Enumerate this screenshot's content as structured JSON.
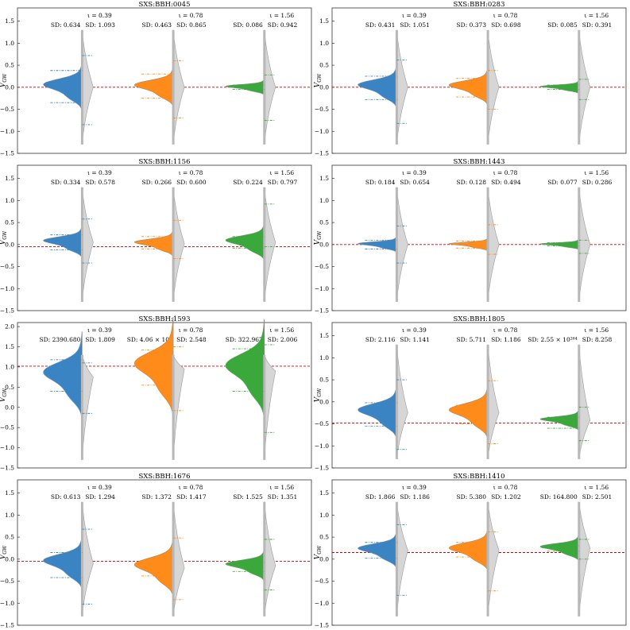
{
  "chart_data": [
    {
      "type": "violin",
      "title": "SXS:BBH:0045",
      "ylabel": "V_GW",
      "ylim": [
        -1.5,
        1.8
      ],
      "yticks": [
        -1.5,
        -1.0,
        -0.5,
        0.0,
        0.5,
        1.0,
        1.5
      ],
      "ytick_labels": [
        "−1.5",
        "−1.0",
        "−0.5",
        "0.0",
        "0.5",
        "1.0",
        "1.5"
      ],
      "reference_line": 0.0,
      "groups": [
        {
          "iota": "ι = 0.39",
          "sd_left": "SD: 0.634",
          "sd_right": "SD: 1.093",
          "color": "#3b84c4",
          "center": 0.0,
          "spread": 0.18,
          "qlo": -0.35,
          "qhi": 0.38,
          "qmin": -0.85,
          "qmax": 0.72
        },
        {
          "iota": "ι = 0.78",
          "sd_left": "SD: 0.463",
          "sd_right": "SD: 0.865",
          "color": "#ff8c1a",
          "center": 0.0,
          "spread": 0.15,
          "qlo": -0.25,
          "qhi": 0.3,
          "qmin": -0.7,
          "qmax": 0.6
        },
        {
          "iota": "ι = 1.56",
          "sd_left": "SD: 0.086",
          "sd_right": "SD: 0.942",
          "color": "#3aa83a",
          "center": 0.0,
          "spread": 0.06,
          "qlo": -0.05,
          "qhi": 0.05,
          "qmin": -0.75,
          "qmax": 0.28
        }
      ]
    },
    {
      "type": "violin",
      "title": "SXS:BBH:0283",
      "ylabel": "V_GW",
      "ylim": [
        -1.5,
        1.8
      ],
      "yticks": [
        -1.5,
        -1.0,
        -0.5,
        0.0,
        0.5,
        1.0,
        1.5
      ],
      "ytick_labels": [
        "−1.5",
        "−1.0",
        "−0.5",
        "0.0",
        "0.5",
        "1.0",
        "1.5"
      ],
      "reference_line": 0.0,
      "groups": [
        {
          "iota": "ι = 0.39",
          "sd_left": "SD: 0.431",
          "sd_right": "SD: 1.051",
          "color": "#3b84c4",
          "center": 0.0,
          "spread": 0.16,
          "qlo": -0.28,
          "qhi": 0.25,
          "qmin": -0.82,
          "qmax": 0.62
        },
        {
          "iota": "ι = 0.78",
          "sd_left": "SD: 0.373",
          "sd_right": "SD: 0.698",
          "color": "#ff8c1a",
          "center": 0.0,
          "spread": 0.14,
          "qlo": -0.22,
          "qhi": 0.2,
          "qmin": -0.5,
          "qmax": 0.38
        },
        {
          "iota": "ι = 1.56",
          "sd_left": "SD: 0.085",
          "sd_right": "SD: 0.391",
          "color": "#3aa83a",
          "center": 0.0,
          "spread": 0.05,
          "qlo": -0.05,
          "qhi": 0.05,
          "qmin": -0.28,
          "qmax": 0.18
        }
      ]
    },
    {
      "type": "violin",
      "title": "SXS:BBH:1156",
      "ylabel": "V_GW",
      "ylim": [
        -1.5,
        1.8
      ],
      "yticks": [
        -1.5,
        -1.0,
        -0.5,
        0.0,
        0.5,
        1.0,
        1.5
      ],
      "ytick_labels": [
        "−1.5",
        "−1.0",
        "−0.5",
        "0.0",
        "0.5",
        "1.0",
        "1.5"
      ],
      "reference_line": -0.05,
      "groups": [
        {
          "iota": "ι = 0.39",
          "sd_left": "SD: 0.334",
          "sd_right": "SD: 0.578",
          "color": "#3b84c4",
          "center": 0.05,
          "spread": 0.12,
          "qlo": -0.12,
          "qhi": 0.22,
          "qmin": -0.42,
          "qmax": 0.58
        },
        {
          "iota": "ι = 0.78",
          "sd_left": "SD: 0.266",
          "sd_right": "SD: 0.600",
          "color": "#ff8c1a",
          "center": 0.02,
          "spread": 0.1,
          "qlo": -0.1,
          "qhi": 0.18,
          "qmin": -0.32,
          "qmax": 0.55
        },
        {
          "iota": "ι = 1.56",
          "sd_left": "SD: 0.224",
          "sd_right": "SD: 0.797",
          "color": "#3aa83a",
          "center": 0.05,
          "spread": 0.14,
          "qlo": -0.08,
          "qhi": 0.18,
          "qmin": -0.05,
          "qmax": 0.92
        }
      ]
    },
    {
      "type": "violin",
      "title": "SXS:BBH:1443",
      "ylabel": "V_GW",
      "ylim": [
        -1.5,
        1.8
      ],
      "yticks": [
        -1.5,
        -1.0,
        -0.5,
        0.0,
        0.5,
        1.0,
        1.5
      ],
      "ytick_labels": [
        "−1.5",
        "−1.0",
        "−0.5",
        "0.0",
        "0.5",
        "1.0",
        "1.5"
      ],
      "reference_line": 0.0,
      "groups": [
        {
          "iota": "ι = 0.39",
          "sd_left": "SD: 0.184",
          "sd_right": "SD: 0.654",
          "color": "#3b84c4",
          "center": 0.0,
          "spread": 0.06,
          "qlo": -0.1,
          "qhi": 0.1,
          "qmin": -0.42,
          "qmax": 0.42
        },
        {
          "iota": "ι = 0.78",
          "sd_left": "SD: 0.128",
          "sd_right": "SD: 0.494",
          "color": "#ff8c1a",
          "center": 0.0,
          "spread": 0.05,
          "qlo": -0.08,
          "qhi": 0.08,
          "qmin": -0.22,
          "qmax": 0.45
        },
        {
          "iota": "ι = 1.56",
          "sd_left": "SD: 0.077",
          "sd_right": "SD: 0.286",
          "color": "#3aa83a",
          "center": 0.0,
          "spread": 0.04,
          "qlo": -0.03,
          "qhi": 0.04,
          "qmin": -0.2,
          "qmax": 0.1
        }
      ]
    },
    {
      "type": "violin",
      "title": "SXS:BBH:1593",
      "ylabel": "V_GW",
      "ylim": [
        -1.5,
        2.1
      ],
      "yticks": [
        -1.5,
        -1.0,
        -0.5,
        0.0,
        0.5,
        1.0,
        1.5,
        2.0
      ],
      "ytick_labels": [
        "−1.5",
        "−1.0",
        "−0.5",
        "0.0",
        "0.5",
        "1.0",
        "1.5",
        "2.0"
      ],
      "reference_line": 1.02,
      "groups": [
        {
          "iota": "ι = 0.39",
          "sd_left": "SD: 2390.680",
          "sd_right": "SD: 1.809",
          "color": "#3b84c4",
          "center": 0.75,
          "spread": 0.35,
          "qlo": 0.4,
          "qhi": 1.18,
          "qmin": -0.15,
          "qmax": 1.1
        },
        {
          "iota": "ι = 0.78",
          "sd_left": "SD: 4.06 × 10⁸",
          "sd_right": "SD: 2.548",
          "color": "#ff8c1a",
          "center": 0.95,
          "spread": 0.4,
          "qlo": 0.55,
          "qhi": 1.42,
          "qmin": -0.08,
          "qmax": 1.5
        },
        {
          "iota": "ι = 1.56",
          "sd_left": "SD: 322.967",
          "sd_right": "SD: 2.006",
          "color": "#3aa83a",
          "center": 0.9,
          "spread": 0.4,
          "qlo": 0.4,
          "qhi": 1.45,
          "qmin": -0.62,
          "qmax": 1.55
        }
      ]
    },
    {
      "type": "violin",
      "title": "SXS:BBH:1805",
      "ylabel": "V_GW",
      "ylim": [
        -1.5,
        1.8
      ],
      "yticks": [
        -1.5,
        -1.0,
        -0.5,
        0.0,
        0.5,
        1.0,
        1.5
      ],
      "ytick_labels": [
        "−1.5",
        "−1.0",
        "−0.5",
        "0.0",
        "0.5",
        "1.0",
        "1.5"
      ],
      "reference_line": -0.48,
      "groups": [
        {
          "iota": "ι = 0.39",
          "sd_left": "SD: 2.116",
          "sd_right": "SD: 1.141",
          "color": "#3b84c4",
          "center": -0.25,
          "spread": 0.2,
          "qlo": -0.55,
          "qhi": -0.02,
          "qmin": -1.08,
          "qmax": 0.5
        },
        {
          "iota": "ι = 0.78",
          "sd_left": "SD: 5.711",
          "sd_right": "SD: 1.186",
          "color": "#ff8c1a",
          "center": -0.25,
          "spread": 0.2,
          "qlo": -0.5,
          "qhi": -0.08,
          "qmin": -0.95,
          "qmax": 0.48
        },
        {
          "iota": "ι = 1.56",
          "sd_left": "SD: 2.55 × 10²⁶⁴",
          "sd_right": "SD: 8.258",
          "color": "#3aa83a",
          "center": -0.42,
          "spread": 0.08,
          "qlo": -0.6,
          "qhi": -0.35,
          "qmin": -0.88,
          "qmax": -0.12
        }
      ]
    },
    {
      "type": "violin",
      "title": "SXS:BBH:1676",
      "ylabel": "V_GW",
      "ylim": [
        -1.5,
        1.8
      ],
      "yticks": [
        -1.5,
        -1.0,
        -0.5,
        0.0,
        0.5,
        1.0,
        1.5
      ],
      "ytick_labels": [
        "−1.5",
        "−1.0",
        "−0.5",
        "0.0",
        "0.5",
        "1.0",
        "1.5"
      ],
      "reference_line": -0.05,
      "groups": [
        {
          "iota": "ι = 0.39",
          "sd_left": "SD: 0.613",
          "sd_right": "SD: 1.294",
          "color": "#3b84c4",
          "center": -0.1,
          "spread": 0.2,
          "qlo": -0.42,
          "qhi": 0.15,
          "qmin": -1.02,
          "qmax": 0.68
        },
        {
          "iota": "ι = 0.78",
          "sd_left": "SD: 1.372",
          "sd_right": "SD: 1.417",
          "color": "#ff8c1a",
          "center": -0.2,
          "spread": 0.22,
          "qlo": -0.38,
          "qhi": -0.05,
          "qmin": -0.92,
          "qmax": 0.48
        },
        {
          "iota": "ι = 1.56",
          "sd_left": "SD: 1.525",
          "sd_right": "SD: 1.351",
          "color": "#3aa83a",
          "center": -0.15,
          "spread": 0.12,
          "qlo": -0.28,
          "qhi": -0.08,
          "qmin": -0.7,
          "qmax": 0.45
        }
      ]
    },
    {
      "type": "violin",
      "title": "SXS:BBH:1410",
      "ylabel": "V_GW",
      "ylim": [
        -1.5,
        1.8
      ],
      "yticks": [
        -1.5,
        -1.0,
        -0.5,
        0.0,
        0.5,
        1.0,
        1.5
      ],
      "ytick_labels": [
        "−1.5",
        "−1.0",
        "−0.5",
        "0.0",
        "0.5",
        "1.0",
        "1.5"
      ],
      "reference_line": 0.15,
      "groups": [
        {
          "iota": "ι = 0.39",
          "sd_left": "SD: 1.866",
          "sd_right": "SD: 1.186",
          "color": "#3b84c4",
          "center": 0.2,
          "spread": 0.14,
          "qlo": 0.02,
          "qhi": 0.38,
          "qmin": -0.82,
          "qmax": 0.78
        },
        {
          "iota": "ι = 0.78",
          "sd_left": "SD: 5.380",
          "sd_right": "SD: 1.202",
          "color": "#ff8c1a",
          "center": 0.2,
          "spread": 0.16,
          "qlo": 0.05,
          "qhi": 0.38,
          "qmin": -0.72,
          "qmax": 0.62
        },
        {
          "iota": "ι = 1.56",
          "sd_left": "SD: 164.800",
          "sd_right": "SD: 2.501",
          "color": "#3aa83a",
          "center": 0.25,
          "spread": 0.1,
          "qlo": 0.18,
          "qhi": 0.3,
          "qmin": 0.0,
          "qmax": 0.45
        }
      ]
    }
  ],
  "colors": {
    "reference_line": "#cc0000",
    "center_line": "#b8b8b8"
  }
}
